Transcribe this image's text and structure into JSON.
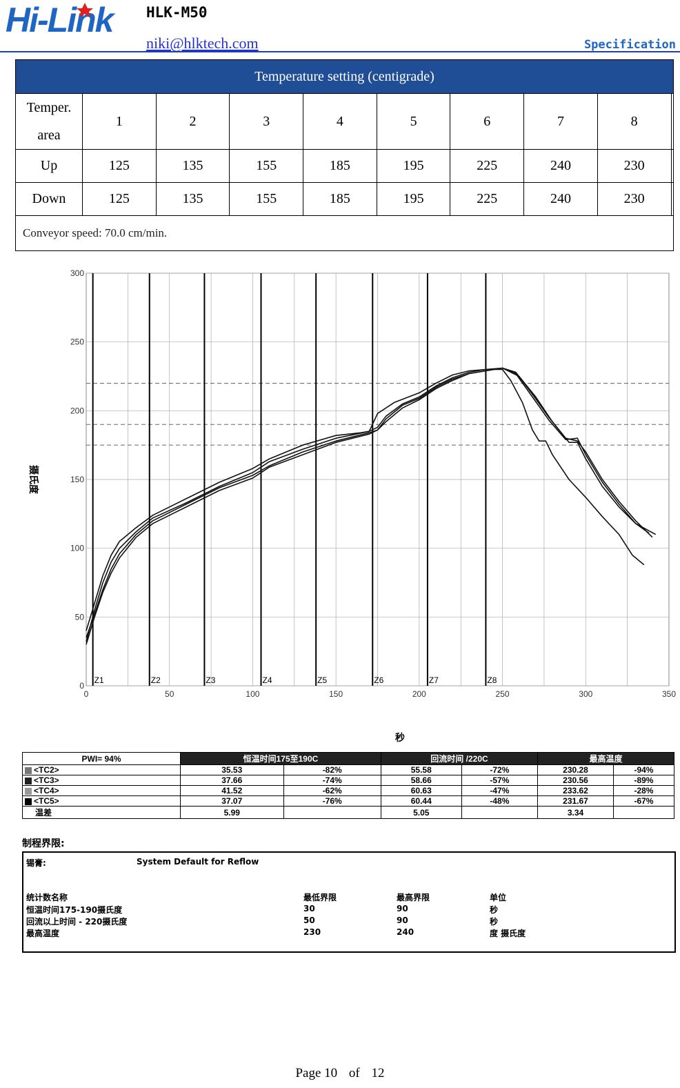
{
  "header": {
    "logo_text": "Hi-Link",
    "model": "HLK-M50",
    "email": "niki@hlktech.com",
    "doc_type": "Specification"
  },
  "temp_table": {
    "title": "Temperature setting (centigrade)",
    "area_label_1": "Temper.",
    "area_label_2": "area",
    "zones": [
      "1",
      "2",
      "3",
      "4",
      "5",
      "6",
      "7",
      "8",
      ""
    ],
    "rows": [
      {
        "label": "Up",
        "values": [
          "125",
          "135",
          "155",
          "185",
          "195",
          "225",
          "240",
          "230",
          ""
        ]
      },
      {
        "label": "Down",
        "values": [
          "125",
          "135",
          "155",
          "185",
          "195",
          "225",
          "240",
          "230",
          ""
        ]
      }
    ],
    "conveyor": "Conveyor speed: 70.0 cm/min."
  },
  "chart_data": {
    "type": "line",
    "ylabel": "摄氏度",
    "xlabel": "秒",
    "xlim": [
      0,
      350
    ],
    "ylim": [
      0,
      300
    ],
    "x_ticks": [
      "0",
      "50",
      "100",
      "150",
      "200",
      "250",
      "300",
      "350"
    ],
    "y_ticks": [
      "0",
      "50",
      "100",
      "150",
      "200",
      "250",
      "300"
    ],
    "zones": [
      {
        "name": "Z1",
        "x": 4
      },
      {
        "name": "Z2",
        "x": 38
      },
      {
        "name": "Z3",
        "x": 71
      },
      {
        "name": "Z4",
        "x": 105
      },
      {
        "name": "Z5",
        "x": 138
      },
      {
        "name": "Z6",
        "x": 172
      },
      {
        "name": "Z7",
        "x": 205
      },
      {
        "name": "Z8",
        "x": 240
      }
    ],
    "ref_lines": [
      175,
      190,
      220
    ],
    "series": [
      {
        "name": "<TC2>",
        "points": [
          [
            0,
            32
          ],
          [
            5,
            55
          ],
          [
            10,
            75
          ],
          [
            15,
            90
          ],
          [
            20,
            100
          ],
          [
            30,
            112
          ],
          [
            40,
            122
          ],
          [
            60,
            133
          ],
          [
            80,
            145
          ],
          [
            100,
            155
          ],
          [
            110,
            163
          ],
          [
            130,
            172
          ],
          [
            150,
            180
          ],
          [
            170,
            185
          ],
          [
            175,
            188
          ],
          [
            180,
            196
          ],
          [
            190,
            205
          ],
          [
            200,
            210
          ],
          [
            210,
            218
          ],
          [
            220,
            224
          ],
          [
            230,
            228
          ],
          [
            240,
            230
          ],
          [
            250,
            231
          ],
          [
            260,
            225
          ],
          [
            270,
            210
          ],
          [
            280,
            192
          ],
          [
            290,
            177
          ],
          [
            295,
            177
          ],
          [
            300,
            165
          ],
          [
            310,
            145
          ],
          [
            320,
            130
          ],
          [
            330,
            118
          ],
          [
            338,
            111
          ]
        ]
      },
      {
        "name": "<TC3>",
        "points": [
          [
            0,
            30
          ],
          [
            5,
            50
          ],
          [
            10,
            68
          ],
          [
            15,
            82
          ],
          [
            20,
            93
          ],
          [
            30,
            108
          ],
          [
            40,
            118
          ],
          [
            60,
            130
          ],
          [
            80,
            142
          ],
          [
            100,
            151
          ],
          [
            110,
            159
          ],
          [
            130,
            168
          ],
          [
            150,
            177
          ],
          [
            170,
            183
          ],
          [
            175,
            186
          ],
          [
            180,
            192
          ],
          [
            190,
            202
          ],
          [
            200,
            208
          ],
          [
            210,
            216
          ],
          [
            220,
            222
          ],
          [
            230,
            227
          ],
          [
            240,
            229
          ],
          [
            250,
            231
          ],
          [
            258,
            228
          ],
          [
            268,
            212
          ],
          [
            278,
            195
          ],
          [
            288,
            180
          ],
          [
            295,
            178
          ],
          [
            300,
            170
          ],
          [
            310,
            150
          ],
          [
            320,
            134
          ],
          [
            330,
            120
          ],
          [
            340,
            108
          ]
        ]
      },
      {
        "name": "<TC4>",
        "points": [
          [
            0,
            40
          ],
          [
            5,
            60
          ],
          [
            10,
            80
          ],
          [
            15,
            95
          ],
          [
            20,
            105
          ],
          [
            30,
            115
          ],
          [
            40,
            124
          ],
          [
            60,
            136
          ],
          [
            80,
            148
          ],
          [
            100,
            158
          ],
          [
            110,
            165
          ],
          [
            130,
            175
          ],
          [
            150,
            182
          ],
          [
            165,
            184
          ],
          [
            170,
            185
          ],
          [
            175,
            198
          ],
          [
            185,
            206
          ],
          [
            200,
            213
          ],
          [
            210,
            220
          ],
          [
            220,
            226
          ],
          [
            230,
            229
          ],
          [
            240,
            230
          ],
          [
            250,
            230
          ],
          [
            255,
            222
          ],
          [
            262,
            206
          ],
          [
            268,
            186
          ],
          [
            272,
            178
          ],
          [
            276,
            178
          ],
          [
            280,
            168
          ],
          [
            290,
            150
          ],
          [
            300,
            137
          ],
          [
            310,
            123
          ],
          [
            320,
            110
          ],
          [
            328,
            95
          ],
          [
            335,
            88
          ]
        ]
      },
      {
        "name": "<TC5>",
        "points": [
          [
            0,
            35
          ],
          [
            5,
            52
          ],
          [
            10,
            70
          ],
          [
            15,
            85
          ],
          [
            20,
            96
          ],
          [
            30,
            110
          ],
          [
            40,
            120
          ],
          [
            60,
            132
          ],
          [
            80,
            144
          ],
          [
            100,
            153
          ],
          [
            110,
            160
          ],
          [
            130,
            170
          ],
          [
            150,
            178
          ],
          [
            170,
            184
          ],
          [
            175,
            186
          ],
          [
            180,
            194
          ],
          [
            190,
            204
          ],
          [
            200,
            209
          ],
          [
            210,
            217
          ],
          [
            220,
            223
          ],
          [
            230,
            227
          ],
          [
            240,
            229
          ],
          [
            250,
            231
          ],
          [
            258,
            227
          ],
          [
            268,
            210
          ],
          [
            278,
            193
          ],
          [
            288,
            179
          ],
          [
            295,
            180
          ],
          [
            300,
            168
          ],
          [
            310,
            148
          ],
          [
            320,
            132
          ],
          [
            330,
            118
          ],
          [
            342,
            110
          ]
        ]
      }
    ]
  },
  "stats": {
    "pwi": "PWI= 94%",
    "col_soak": "恒温时间175至190C",
    "col_reflow": "回流时间 /220C",
    "col_peak": "最高温度",
    "rows": [
      {
        "name": "<TC2>",
        "color": "#777777",
        "soak": "35.53",
        "soak_pct": "-82%",
        "reflow": "55.58",
        "reflow_pct": "-72%",
        "peak": "230.28",
        "peak_pct": "-94%"
      },
      {
        "name": "<TC3>",
        "color": "#222222",
        "soak": "37.66",
        "soak_pct": "-74%",
        "reflow": "58.66",
        "reflow_pct": "-57%",
        "peak": "230.56",
        "peak_pct": "-89%"
      },
      {
        "name": "<TC4>",
        "color": "#999999",
        "soak": "41.52",
        "soak_pct": "-62%",
        "reflow": "60.63",
        "reflow_pct": "-47%",
        "peak": "233.62",
        "peak_pct": "-28%"
      },
      {
        "name": "<TC5>",
        "color": "#000000",
        "soak": "37.07",
        "soak_pct": "-76%",
        "reflow": "60.44",
        "reflow_pct": "-48%",
        "peak": "231.67",
        "peak_pct": "-67%"
      }
    ],
    "diff_label": "温差",
    "diff": {
      "soak": "5.99",
      "reflow": "5.05",
      "peak": "3.34"
    }
  },
  "limits": {
    "title": "制程界限:",
    "paste_label": "锡膏:",
    "paste_value": "System Default for Reflow",
    "col_name": "统计数名称",
    "col_low": "最低界限",
    "col_high": "最高界限",
    "col_unit": "单位",
    "rows": [
      {
        "name": "恒温时间175-190摄氏度",
        "low": "30",
        "high": "90",
        "unit": "秒"
      },
      {
        "name": "回流以上时间 - 220摄氏度",
        "low": "50",
        "high": "90",
        "unit": "秒"
      },
      {
        "name": "最高温度",
        "low": "230",
        "high": "240",
        "unit": "度 摄氏度"
      }
    ]
  },
  "footer": {
    "page": "Page 10",
    "of": "of",
    "total": "12"
  }
}
